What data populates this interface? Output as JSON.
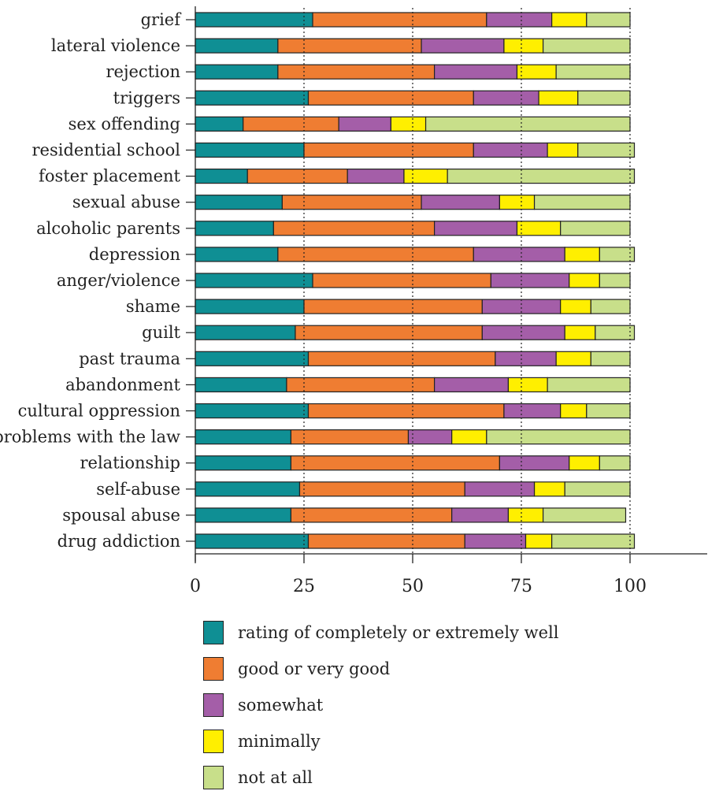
{
  "chart_data": {
    "type": "bar",
    "orientation": "horizontal",
    "stacked": true,
    "title": "",
    "xlabel": "",
    "ylabel": "",
    "xlim": [
      0,
      100
    ],
    "x_ticks": [
      "0",
      "25",
      "50",
      "75",
      "100"
    ],
    "grid": false,
    "legend_position": "bottom",
    "categories": [
      "grief",
      "lateral violence",
      "rejection",
      "triggers",
      "sex offending",
      "residential school",
      "foster placement",
      "sexual abuse",
      "alcoholic parents",
      "depression",
      "anger/violence",
      "shame",
      "guilt",
      "past trauma",
      "abandonment",
      "cultural oppression",
      "problems with the law",
      "relationship",
      "self-abuse",
      "spousal abuse",
      "drug addiction"
    ],
    "series": [
      {
        "name": "rating of completely or extremely well",
        "color": "#0f8f94",
        "values": [
          27,
          19,
          19,
          26,
          11,
          25,
          12,
          20,
          18,
          19,
          27,
          25,
          23,
          26,
          21,
          26,
          22,
          22,
          24,
          22,
          26
        ]
      },
      {
        "name": "good or very good",
        "color": "#ef7d32",
        "values": [
          40,
          33,
          36,
          38,
          22,
          39,
          23,
          32,
          37,
          45,
          41,
          41,
          43,
          43,
          34,
          45,
          27,
          48,
          38,
          37,
          36
        ]
      },
      {
        "name": "somewhat",
        "color": "#a45ea8",
        "values": [
          15,
          19,
          19,
          15,
          12,
          17,
          13,
          18,
          19,
          21,
          18,
          18,
          19,
          14,
          17,
          13,
          10,
          16,
          16,
          13,
          14
        ]
      },
      {
        "name": "minimally",
        "color": "#ffef00",
        "values": [
          8,
          9,
          9,
          9,
          8,
          7,
          10,
          8,
          10,
          8,
          7,
          7,
          7,
          8,
          9,
          6,
          8,
          7,
          7,
          8,
          6
        ]
      },
      {
        "name": "not at all",
        "color": "#c8df8a",
        "values": [
          10,
          20,
          17,
          12,
          47,
          13,
          43,
          22,
          16,
          8,
          7,
          9,
          9,
          9,
          19,
          10,
          33,
          7,
          15,
          19,
          19
        ]
      }
    ]
  }
}
